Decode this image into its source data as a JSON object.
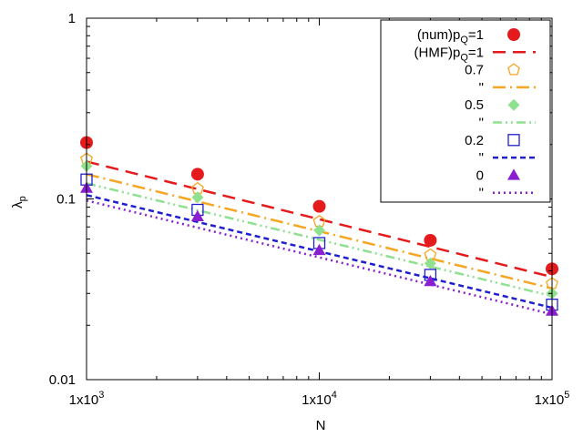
{
  "chart_data": {
    "type": "scatter",
    "title": "",
    "xlabel": "N",
    "ylabel": "λ",
    "ylabel_sub": "p",
    "xscale": "log",
    "yscale": "log",
    "xlim": [
      1000,
      100000
    ],
    "ylim": [
      0.01,
      1
    ],
    "x_ticks": [
      {
        "value": 1000,
        "base": "1x10",
        "exp": "3"
      },
      {
        "value": 10000,
        "base": "1x10",
        "exp": "4"
      },
      {
        "value": 100000,
        "base": "1x10",
        "exp": "5"
      }
    ],
    "y_ticks": [
      {
        "value": 0.01,
        "label": "0.01"
      },
      {
        "value": 0.1,
        "label": "0.1"
      },
      {
        "value": 1,
        "label": "1"
      }
    ],
    "grid": false,
    "legend_position": "top-right",
    "x": [
      1000,
      3000,
      10000,
      30000,
      100000
    ],
    "series": [
      {
        "name": "(num)p_Q=1",
        "label_main": "(num)p",
        "label_sub": "Q",
        "label_tail": "=1",
        "kind": "points",
        "marker": "filled-circle",
        "color": "#e41a1c",
        "values": [
          0.205,
          0.137,
          0.091,
          0.059,
          0.041
        ]
      },
      {
        "name": "(HMF)p_Q=1",
        "label_main": "(HMF)p",
        "label_sub": "Q",
        "label_tail": "=1",
        "kind": "line",
        "dash": "long-dash",
        "color": "#e41a1c",
        "line_x": [
          1000,
          100000
        ],
        "line_y": [
          0.161,
          0.037
        ]
      },
      {
        "name": "0.7",
        "label_main": "0.7",
        "label_sub": "",
        "label_tail": "",
        "kind": "points",
        "marker": "open-pentagon",
        "color": "#f5a623",
        "values": [
          0.166,
          0.114,
          0.075,
          0.049,
          0.034
        ]
      },
      {
        "name": "\"",
        "label_main": "\"",
        "label_sub": "",
        "label_tail": "",
        "kind": "line",
        "dash": "dash-dot",
        "color": "#f5a623",
        "line_x": [
          1000,
          100000
        ],
        "line_y": [
          0.137,
          0.032
        ]
      },
      {
        "name": "0.5",
        "label_main": "0.5",
        "label_sub": "",
        "label_tail": "",
        "kind": "points",
        "marker": "filled-diamond",
        "color": "#8fe08f",
        "values": [
          0.152,
          0.102,
          0.067,
          0.044,
          0.03
        ]
      },
      {
        "name": "\"",
        "label_main": "\"",
        "label_sub": "",
        "label_tail": "",
        "kind": "line",
        "dash": "dash-dot-dot",
        "color": "#8fe08f",
        "line_x": [
          1000,
          100000
        ],
        "line_y": [
          0.122,
          0.029
        ]
      },
      {
        "name": "0.2",
        "label_main": "0.2",
        "label_sub": "",
        "label_tail": "",
        "kind": "points",
        "marker": "open-square",
        "color": "#1f1fd0",
        "values": [
          0.128,
          0.087,
          0.057,
          0.038,
          0.026
        ]
      },
      {
        "name": "\"",
        "label_main": "\"",
        "label_sub": "",
        "label_tail": "",
        "kind": "line",
        "dash": "short-dash",
        "color": "#1f1fd0",
        "line_x": [
          1000,
          100000
        ],
        "line_y": [
          0.105,
          0.025
        ]
      },
      {
        "name": "0",
        "label_main": "0",
        "label_sub": "",
        "label_tail": "",
        "kind": "points",
        "marker": "filled-triangle",
        "color": "#8a1fd0",
        "values": [
          0.115,
          0.08,
          0.052,
          0.035,
          0.024
        ]
      },
      {
        "name": "\"",
        "label_main": "\"",
        "label_sub": "",
        "label_tail": "",
        "kind": "line",
        "dash": "dot",
        "color": "#8a1fd0",
        "line_x": [
          1000,
          100000
        ],
        "line_y": [
          0.098,
          0.023
        ]
      }
    ]
  }
}
